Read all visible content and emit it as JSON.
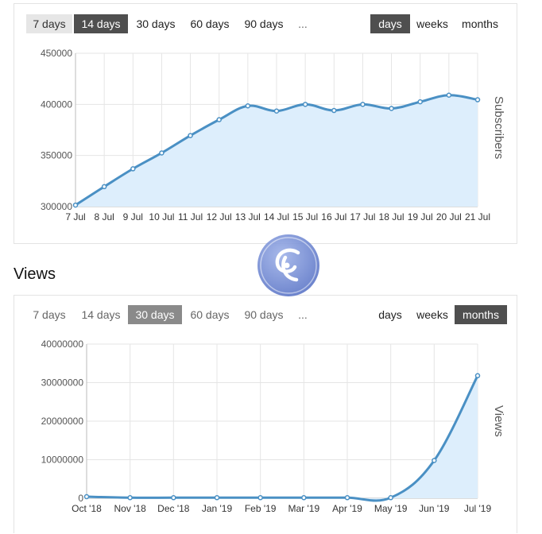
{
  "subscribers_panel": {
    "ranges": [
      "7 days",
      "14 days",
      "30 days",
      "60 days",
      "90 days",
      "..."
    ],
    "active_range": "14 days",
    "units": [
      "days",
      "weeks",
      "months"
    ],
    "active_unit": "days"
  },
  "views_section": {
    "title": "Views"
  },
  "views_panel": {
    "ranges": [
      "7 days",
      "14 days",
      "30 days",
      "60 days",
      "90 days",
      "..."
    ],
    "active_range": "30 days",
    "units": [
      "days",
      "weeks",
      "months"
    ],
    "active_unit": "months"
  },
  "chart_data": [
    {
      "type": "area",
      "categories": [
        "7 Jul",
        "8 Jul",
        "9 Jul",
        "10 Jul",
        "11 Jul",
        "12 Jul",
        "13 Jul",
        "14 Jul",
        "15 Jul",
        "16 Jul",
        "17 Jul",
        "18 Jul",
        "19 Jul",
        "20 Jul",
        "21 Jul"
      ],
      "series": [
        {
          "values": [
            301500,
            319500,
            337000,
            352500,
            369500,
            385000,
            398500,
            393500,
            400000,
            394000,
            400000,
            396000,
            402500,
            409000,
            404500
          ]
        }
      ],
      "ylabel": "Subscribers",
      "yticks": [
        "450000",
        "400000",
        "350000",
        "300000"
      ],
      "ylim": [
        300000,
        450000
      ],
      "grid": true,
      "line_color": "#4a90c4",
      "fill_color": "#ddeefc"
    },
    {
      "type": "area",
      "categories": [
        "Oct '18",
        "Nov '18",
        "Dec '18",
        "Jan '19",
        "Feb '19",
        "Mar '19",
        "Apr '19",
        "May '19",
        "Jun '19",
        "Jul '19"
      ],
      "series": [
        {
          "values": [
            400000,
            150000,
            150000,
            150000,
            150000,
            150000,
            150000,
            150000,
            9800000,
            31800000
          ]
        }
      ],
      "ylabel": "Views",
      "yticks": [
        "40000000",
        "30000000",
        "20000000",
        "10000000",
        "0"
      ],
      "ylim": [
        0,
        40000000
      ],
      "grid": true,
      "line_color": "#4a90c4",
      "fill_color": "#ddeefc"
    }
  ]
}
